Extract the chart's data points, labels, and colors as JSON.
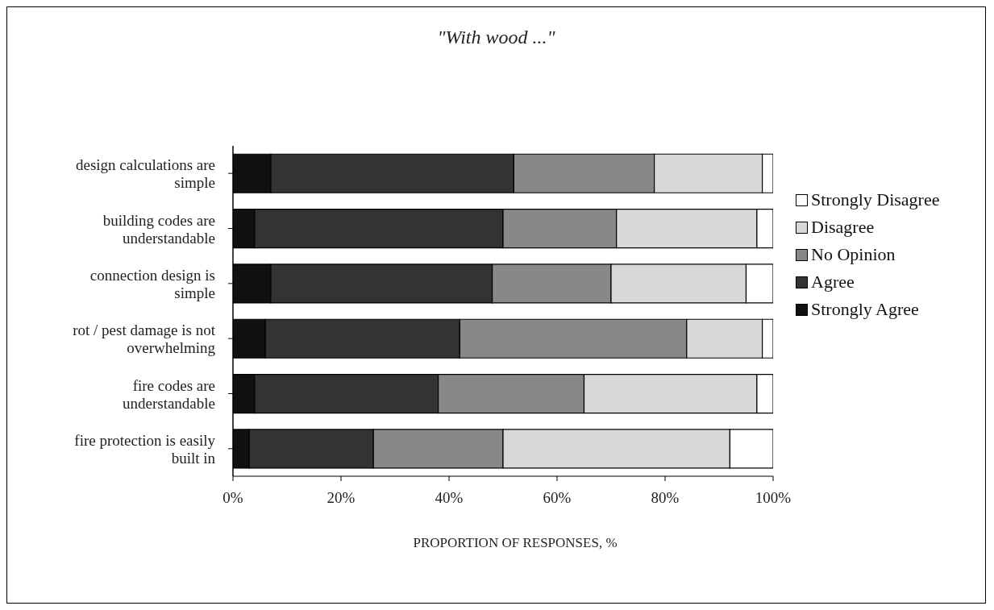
{
  "chart_data": {
    "type": "bar",
    "orientation": "horizontal",
    "stacked": true,
    "title": "\"With wood ...\"",
    "xlabel": "PROPORTION OF RESPONSES, %",
    "categories": [
      "design calculations are simple",
      "building codes are understandable",
      "connection design is simple",
      "rot / pest damage is not overwhelming",
      "fire codes are understandable",
      "fire protection is easily built in"
    ],
    "series": [
      {
        "name": "Strongly Agree",
        "color": "#111111",
        "values": [
          7,
          4,
          7,
          6,
          4,
          3
        ]
      },
      {
        "name": "Agree",
        "color": "#333333",
        "values": [
          45,
          46,
          41,
          36,
          34,
          23
        ]
      },
      {
        "name": "No Opinion",
        "color": "#888888",
        "values": [
          26,
          21,
          22,
          42,
          27,
          24
        ]
      },
      {
        "name": "Disagree",
        "color": "#d8d8d8",
        "values": [
          20,
          26,
          25,
          14,
          32,
          42
        ]
      },
      {
        "name": "Strongly Disagree",
        "color": "#ffffff",
        "values": [
          2,
          3,
          5,
          2,
          3,
          8
        ]
      }
    ],
    "xlim": [
      0,
      100
    ],
    "xticks": [
      {
        "value": 0,
        "label": "0%"
      },
      {
        "value": 20,
        "label": "20%"
      },
      {
        "value": 40,
        "label": "40%"
      },
      {
        "value": 60,
        "label": "60%"
      },
      {
        "value": 80,
        "label": "80%"
      },
      {
        "value": 100,
        "label": "100%"
      }
    ],
    "grid": false,
    "legend": "right"
  }
}
